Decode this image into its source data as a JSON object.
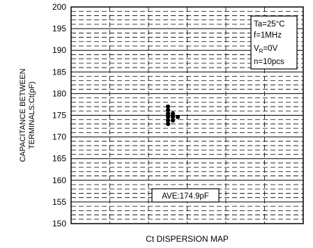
{
  "chart_data": {
    "type": "scatter",
    "title": "",
    "caption": "Ct DISPERSION MAP",
    "ylabel": [
      "CAPACITANCE BETWEEN",
      "TERMINALS:Ct(pF)"
    ],
    "xlabel": "",
    "ylim": [
      150,
      200
    ],
    "yticks": [
      150,
      155,
      160,
      165,
      170,
      175,
      180,
      185,
      190,
      195,
      200
    ],
    "grid": true,
    "conditions": {
      "ta": "Ta=25°C",
      "freq": "f=1MHz",
      "vr_prefix": "V",
      "vr_sub": "R",
      "vr_suffix": "=0V",
      "n": "n=10pcs"
    },
    "average_label": "AVE:174.9pF",
    "series": [
      {
        "points": [
          {
            "col": 0,
            "y": 177.0
          },
          {
            "col": 0,
            "y": 176.2
          },
          {
            "col": 0,
            "y": 175.4
          },
          {
            "col": 0,
            "y": 174.6
          },
          {
            "col": 0,
            "y": 173.8
          },
          {
            "col": 0,
            "y": 173.0
          },
          {
            "col": 1,
            "y": 175.4
          },
          {
            "col": 1,
            "y": 174.6
          },
          {
            "col": 1,
            "y": 173.8
          },
          {
            "col": 2,
            "y": 174.6
          }
        ]
      }
    ]
  }
}
